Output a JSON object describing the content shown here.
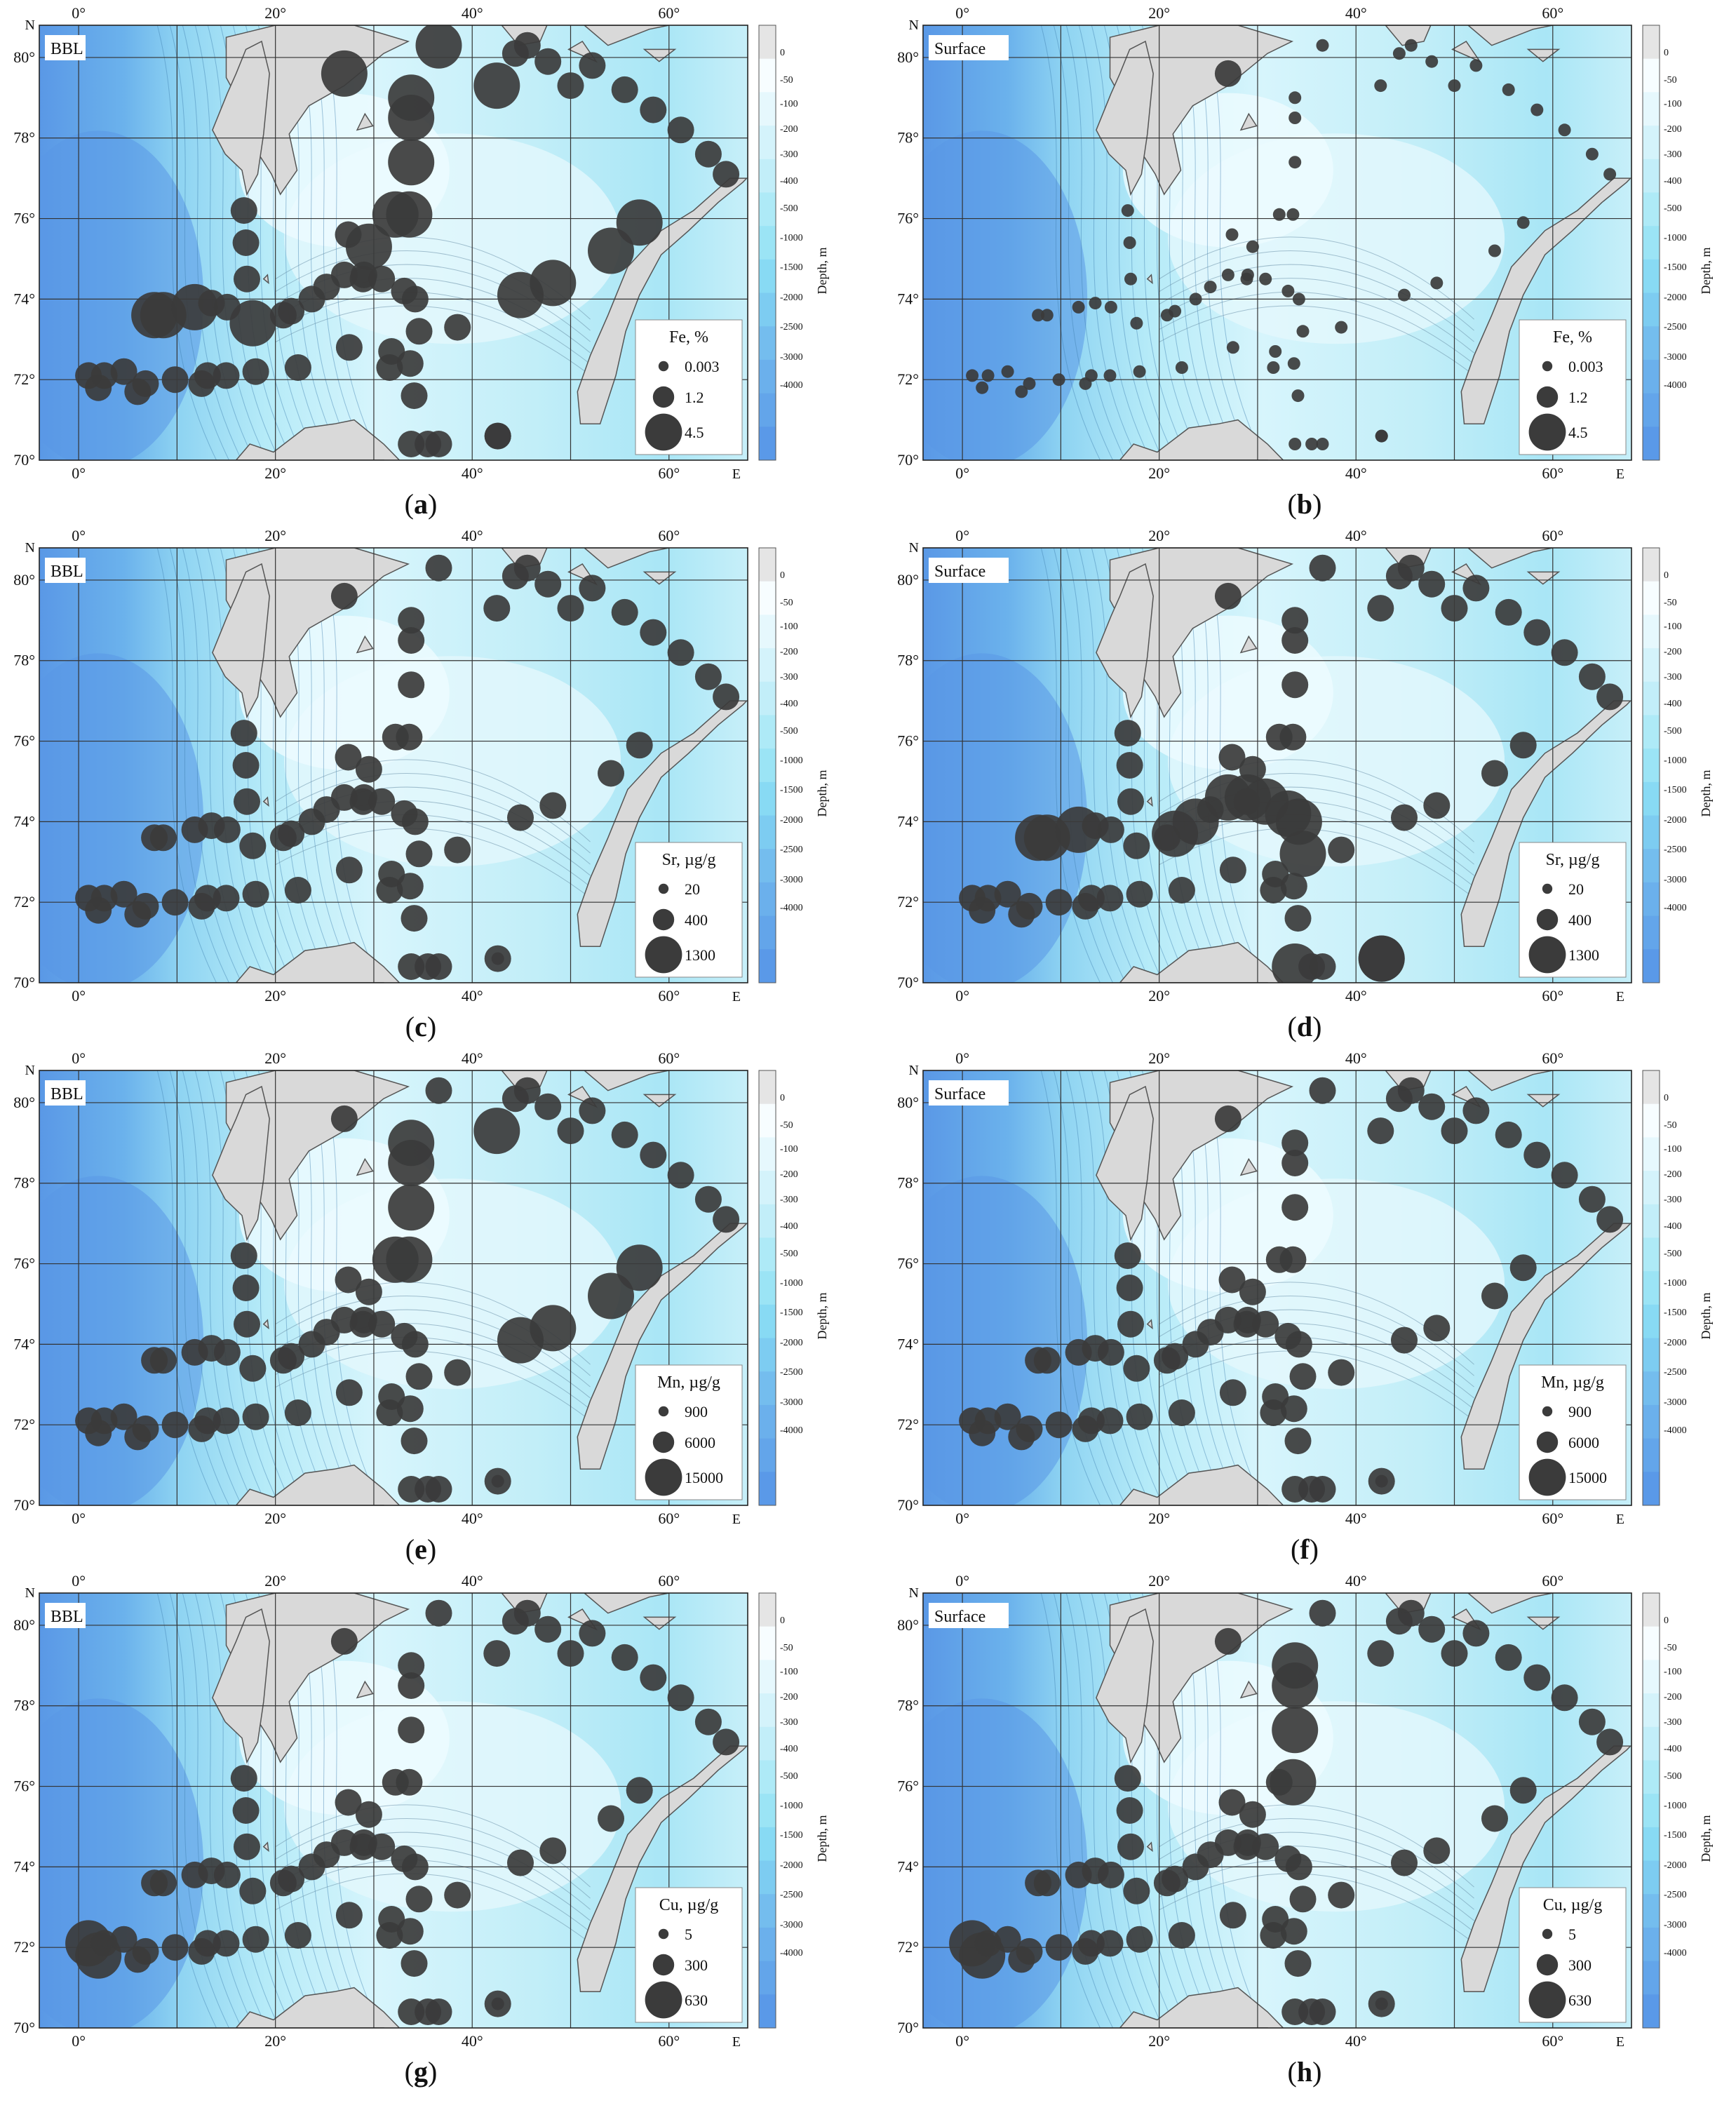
{
  "axes": {
    "lon_ticks": [
      "0°",
      "20°",
      "40°",
      "60°"
    ],
    "lat_ticks": [
      "70°",
      "72°",
      "74°",
      "76°",
      "78°",
      "80°"
    ],
    "north_label": "N",
    "east_label": "E"
  },
  "depth_scale": {
    "title": "Depth, m",
    "values": [
      "0",
      "-50",
      "-100",
      "-200",
      "-300",
      "-400",
      "-500",
      "-1000",
      "-1500",
      "-2000",
      "-2500",
      "-3000",
      "-4000"
    ],
    "colors": [
      "#e5e5e5",
      "#f7fdff",
      "#e6f8fd",
      "#d4f3fb",
      "#c2eef9",
      "#aeeaf7",
      "#9be4f5",
      "#88daf4",
      "#7dccf1",
      "#74bdee",
      "#6bb0ec",
      "#63a5ea",
      "#5a99e8"
    ]
  },
  "panels": [
    {
      "id": "a",
      "label": "BBL",
      "element": "Fe, %",
      "legend": [
        "0.003",
        "1.2",
        "4.5"
      ],
      "caption_letter": "a",
      "sizes": [
        1,
        1,
        1,
        1,
        1,
        1,
        1,
        1,
        1,
        1,
        1,
        1,
        1,
        1,
        1,
        1,
        1,
        2,
        2,
        2,
        1,
        1,
        2,
        1,
        1,
        1,
        1,
        1,
        1,
        1,
        1,
        1,
        1,
        1,
        1,
        1,
        2,
        2,
        2,
        2,
        2,
        2,
        2,
        2,
        2,
        2,
        2,
        1,
        1,
        1,
        1,
        1,
        1,
        1,
        1,
        1,
        1,
        1,
        1,
        1,
        1,
        1,
        1,
        1,
        2,
        2,
        1
      ]
    },
    {
      "id": "b",
      "label": "Surface",
      "element": "Fe, %",
      "legend": [
        "0.003",
        "1.2",
        "4.5"
      ],
      "caption_letter": "b",
      "sizes": [
        0,
        0,
        0,
        0,
        0,
        0,
        0,
        0,
        0,
        0,
        0,
        0,
        0,
        0,
        0,
        0,
        0,
        0,
        0,
        0,
        0,
        0,
        0,
        0,
        0,
        0,
        0,
        0,
        0,
        0,
        0,
        0,
        0,
        0,
        0,
        0,
        0,
        0,
        0,
        0,
        0,
        0,
        0,
        0,
        0,
        0,
        0,
        0,
        0,
        0,
        0,
        0,
        0,
        0,
        0,
        0,
        0,
        0,
        0,
        0,
        0,
        0,
        0,
        0,
        1,
        0,
        0
      ]
    },
    {
      "id": "c",
      "label": "BBL",
      "element": "Sr, µg/g",
      "legend": [
        "20",
        "400",
        "1300"
      ],
      "caption_letter": "c",
      "sizes": [
        1,
        1,
        1,
        1,
        1,
        1,
        1,
        1,
        1,
        1,
        1,
        1,
        1,
        1,
        1,
        1,
        1,
        1,
        1,
        1,
        1,
        1,
        1,
        1,
        1,
        1,
        1,
        1,
        1,
        1,
        1,
        1,
        1,
        1,
        1,
        1,
        1,
        1,
        1,
        1,
        1,
        1,
        1,
        1,
        1,
        1,
        1,
        1,
        1,
        1,
        1,
        1,
        1,
        1,
        1,
        1,
        1,
        1,
        1,
        1,
        1,
        1,
        1,
        1,
        1,
        1,
        0
      ]
    },
    {
      "id": "d",
      "label": "Surface",
      "element": "Sr, µg/g",
      "legend": [
        "20",
        "400",
        "1300"
      ],
      "caption_letter": "d",
      "sizes": [
        1,
        1,
        1,
        1,
        1,
        1,
        1,
        1,
        1,
        1,
        1,
        1,
        1,
        1,
        2,
        1,
        2,
        2,
        2,
        2,
        1,
        1,
        1,
        2,
        2,
        2,
        2,
        2,
        2,
        2,
        2,
        1,
        1,
        1,
        1,
        1,
        1,
        1,
        1,
        1,
        1,
        1,
        1,
        1,
        1,
        1,
        1,
        1,
        1,
        1,
        1,
        1,
        1,
        1,
        1,
        1,
        1,
        1,
        1,
        1,
        1,
        1,
        1,
        1,
        1,
        1,
        2
      ]
    },
    {
      "id": "e",
      "label": "BBL",
      "element": "Mn, µg/g",
      "legend": [
        "900",
        "6000",
        "15000"
      ],
      "caption_letter": "e",
      "sizes": [
        1,
        1,
        1,
        1,
        1,
        1,
        1,
        1,
        1,
        1,
        1,
        1,
        1,
        1,
        1,
        1,
        1,
        1,
        1,
        1,
        1,
        1,
        1,
        1,
        1,
        1,
        1,
        1,
        1,
        1,
        1,
        1,
        1,
        1,
        1,
        1,
        1,
        2,
        2,
        2,
        2,
        2,
        2,
        2,
        2,
        2,
        2,
        1,
        1,
        1,
        1,
        1,
        1,
        1,
        1,
        1,
        1,
        1,
        1,
        1,
        1,
        1,
        1,
        1,
        1,
        1,
        0
      ]
    },
    {
      "id": "f",
      "label": "Surface",
      "element": "Mn, µg/g",
      "legend": [
        "900",
        "6000",
        "15000"
      ],
      "caption_letter": "f",
      "sizes": [
        1,
        1,
        1,
        1,
        1,
        1,
        1,
        1,
        1,
        1,
        1,
        1,
        1,
        1,
        1,
        1,
        1,
        1,
        1,
        1,
        1,
        1,
        1,
        1,
        1,
        1,
        1,
        1,
        1,
        1,
        1,
        1,
        1,
        1,
        1,
        1,
        1,
        1,
        1,
        1,
        1,
        1,
        1,
        1,
        1,
        1,
        1,
        1,
        1,
        1,
        1,
        1,
        1,
        1,
        1,
        1,
        1,
        1,
        1,
        1,
        1,
        1,
        1,
        1,
        1,
        1,
        0
      ]
    },
    {
      "id": "g",
      "label": "BBL",
      "element": "Cu, µg/g",
      "legend": [
        "5",
        "300",
        "630"
      ],
      "caption_letter": "g",
      "sizes": [
        2,
        2,
        1,
        1,
        1,
        1,
        1,
        1,
        1,
        1,
        1,
        1,
        1,
        1,
        1,
        1,
        1,
        1,
        1,
        1,
        1,
        1,
        1,
        1,
        1,
        1,
        1,
        1,
        1,
        1,
        1,
        1,
        1,
        1,
        1,
        1,
        1,
        1,
        1,
        1,
        1,
        1,
        1,
        1,
        1,
        1,
        1,
        1,
        1,
        1,
        1,
        1,
        1,
        1,
        1,
        1,
        1,
        1,
        1,
        1,
        1,
        1,
        1,
        1,
        1,
        1,
        0
      ]
    },
    {
      "id": "h",
      "label": "Surface",
      "element": "Cu, µg/g",
      "legend": [
        "5",
        "300",
        "630"
      ],
      "caption_letter": "h",
      "sizes": [
        2,
        2,
        1,
        1,
        1,
        1,
        1,
        1,
        1,
        1,
        1,
        1,
        1,
        1,
        1,
        1,
        1,
        1,
        1,
        1,
        1,
        1,
        1,
        1,
        1,
        1,
        1,
        1,
        1,
        1,
        1,
        1,
        1,
        1,
        1,
        1,
        1,
        1,
        2,
        2,
        2,
        2,
        1,
        1,
        1,
        1,
        1,
        1,
        1,
        1,
        1,
        1,
        1,
        1,
        1,
        1,
        1,
        1,
        1,
        1,
        1,
        1,
        1,
        1,
        1,
        1,
        0
      ]
    }
  ]
}
